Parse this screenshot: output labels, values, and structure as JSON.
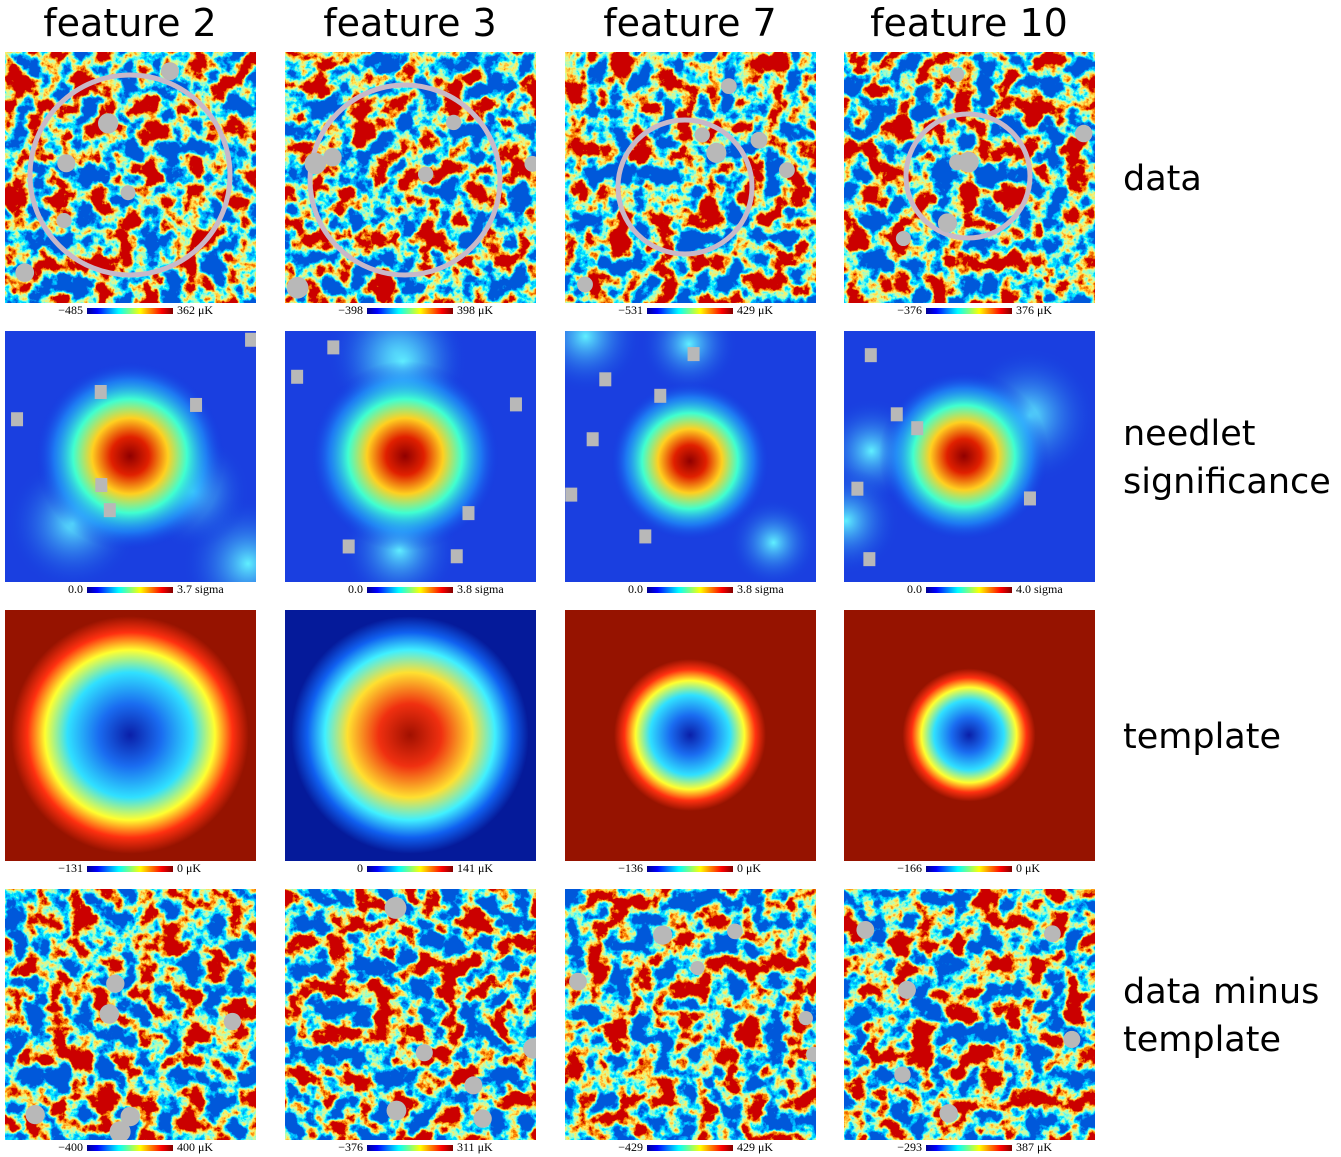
{
  "columns": [
    "feature 2",
    "feature 3",
    "feature 7",
    "feature 10"
  ],
  "rows": [
    {
      "label": [
        "data"
      ],
      "panels": [
        {
          "min": "−485",
          "max": "362",
          "unit": "μK"
        },
        {
          "min": "−398",
          "max": "398",
          "unit": "μK"
        },
        {
          "min": "−531",
          "max": "429",
          "unit": "μK"
        },
        {
          "min": "−376",
          "max": "376",
          "unit": "μK"
        }
      ]
    },
    {
      "label": [
        "needlet",
        "significance"
      ],
      "panels": [
        {
          "min": "0.0",
          "max": "3.7",
          "unit": "sigma"
        },
        {
          "min": "0.0",
          "max": "3.8",
          "unit": "sigma"
        },
        {
          "min": "0.0",
          "max": "3.8",
          "unit": "sigma"
        },
        {
          "min": "0.0",
          "max": "4.0",
          "unit": "sigma"
        }
      ]
    },
    {
      "label": [
        "template"
      ],
      "panels": [
        {
          "min": "−131",
          "max": "0",
          "unit": "μK"
        },
        {
          "min": "0",
          "max": "141",
          "unit": "μK"
        },
        {
          "min": "−136",
          "max": "0",
          "unit": "μK"
        },
        {
          "min": "−166",
          "max": "0",
          "unit": "μK"
        }
      ]
    },
    {
      "label": [
        "data minus",
        "template"
      ],
      "panels": [
        {
          "min": "−400",
          "max": "400",
          "unit": "μK"
        },
        {
          "min": "−376",
          "max": "311",
          "unit": "μK"
        },
        {
          "min": "−429",
          "max": "429",
          "unit": "μK"
        },
        {
          "min": "−293",
          "max": "387",
          "unit": "μK"
        }
      ]
    }
  ]
}
